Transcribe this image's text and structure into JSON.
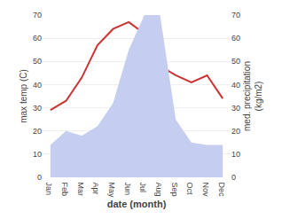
{
  "chart_data": {
    "type": "line",
    "xlabel": "date (month)",
    "ylabel": "max temp (C)",
    "y2label": "med. precipitation\n(kg/m2)",
    "categories": [
      "Jan",
      "Feb",
      "Mar",
      "Apr",
      "May",
      "Jun",
      "Jul",
      "Aug",
      "Sep",
      "Oct",
      "Nov",
      "Dec"
    ],
    "series": [
      {
        "type": "area",
        "axis": "y2",
        "color": "#c5cef0",
        "values": [
          14,
          20,
          18,
          22,
          32,
          55,
          70,
          70,
          25,
          15,
          14,
          14
        ]
      },
      {
        "type": "line",
        "color": "#cc3333",
        "values": [
          29,
          33,
          43,
          57,
          64,
          67,
          62,
          48,
          44,
          41,
          44,
          34
        ]
      }
    ],
    "ylim": [
      0,
      70
    ],
    "yticks": [
      0,
      10,
      20,
      30,
      40,
      50,
      60,
      70
    ],
    "y2lim": [
      0,
      70
    ],
    "y2ticks": [
      0,
      10,
      20,
      30,
      40,
      50,
      60,
      70
    ],
    "grid": true
  }
}
